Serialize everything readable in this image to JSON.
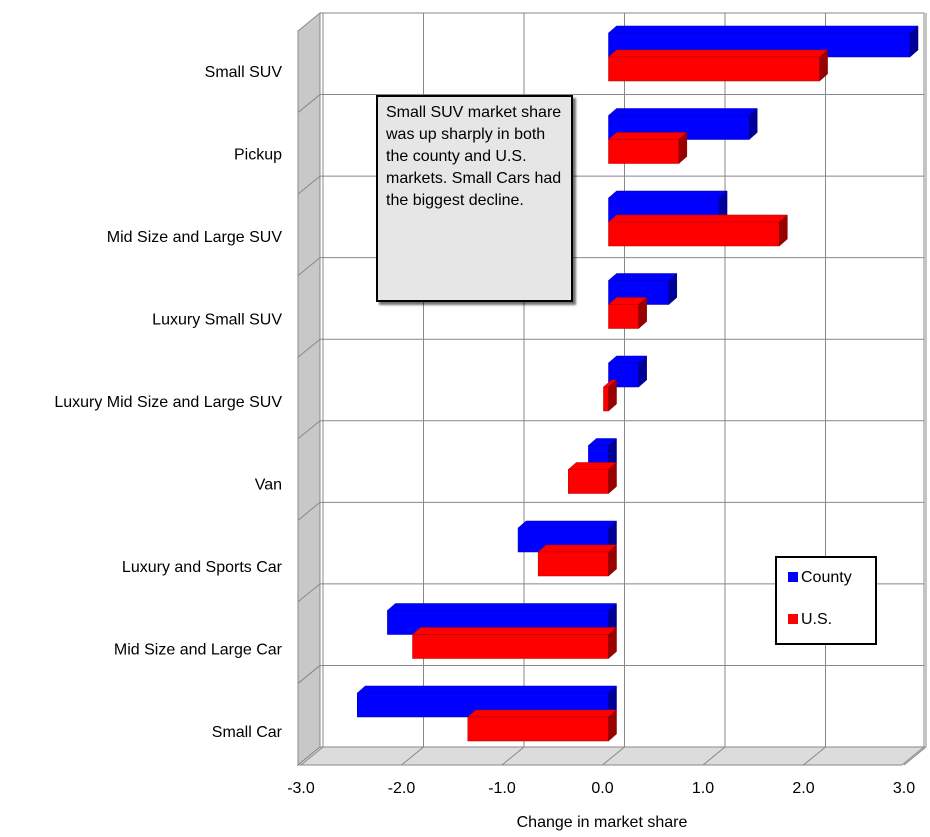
{
  "chart_data": {
    "type": "bar",
    "orientation": "horizontal",
    "categories": [
      "Small SUV",
      "Pickup",
      "Mid Size and Large SUV",
      "Luxury Small SUV",
      "Luxury Mid Size and Large SUV",
      "Van",
      "Luxury and Sports Car",
      "Mid Size and Large Car",
      "Small Car"
    ],
    "series": [
      {
        "name": "County",
        "color": "#0000ff",
        "values": [
          3.0,
          1.4,
          1.1,
          0.6,
          0.3,
          -0.2,
          -0.9,
          -2.2,
          -2.5
        ]
      },
      {
        "name": "U.S.",
        "color": "#ff0000",
        "values": [
          2.1,
          0.7,
          1.7,
          0.3,
          -0.05,
          -0.4,
          -0.7,
          -1.95,
          -1.4
        ]
      }
    ],
    "xlabel": "Change in market share",
    "ylabel": "",
    "xlim": [
      -3.0,
      3.0
    ],
    "xticks": [
      "-3.0",
      "-2.0",
      "-1.0",
      "0.0",
      "1.0",
      "2.0",
      "3.0"
    ],
    "grid": true,
    "legend_position": "bottom-right",
    "annotation": "Small SUV market share was up sharply in both the county and U.S. markets. Small Cars had the biggest decline."
  }
}
